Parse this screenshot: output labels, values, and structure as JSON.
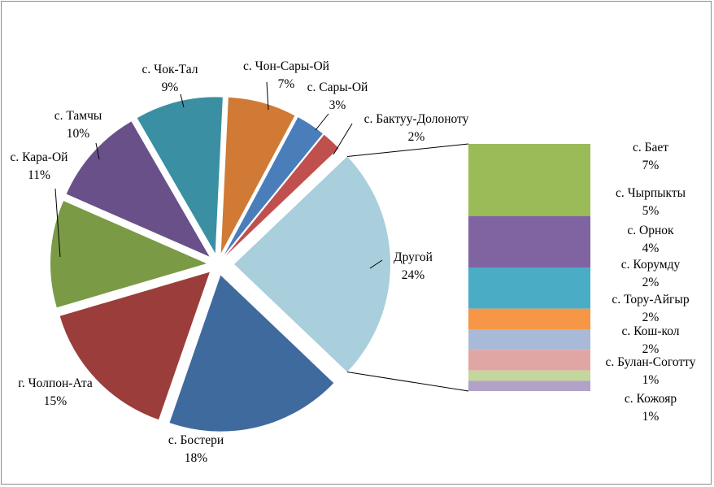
{
  "chart_data": {
    "type": "bar-of-pie",
    "pie": {
      "slices": [
        {
          "label": "с. Чон-Сары-Ой",
          "value": 7,
          "percent_label": "7%",
          "color": "#D07A35"
        },
        {
          "label": "с. Сары-Ой",
          "value": 3,
          "percent_label": "3%",
          "color": "#4A7EBB"
        },
        {
          "label": "с. Бактуу-Долоноту",
          "value": 2,
          "percent_label": "2%",
          "color": "#C0504D"
        },
        {
          "label": "Другой",
          "value": 24,
          "percent_label": "24%",
          "color": "#A9CEDC"
        },
        {
          "label": "с. Бостери",
          "value": 18,
          "percent_label": "18%",
          "color": "#3F6A9E"
        },
        {
          "label": "г. Чолпон-Ата",
          "value": 15,
          "percent_label": "15%",
          "color": "#9B3D3A"
        },
        {
          "label": "с. Кара-Ой",
          "value": 11,
          "percent_label": "11%",
          "color": "#7A9A46"
        },
        {
          "label": "с. Тамчы",
          "value": 10,
          "percent_label": "10%",
          "color": "#6A5089"
        },
        {
          "label": "с. Чок-Тал",
          "value": 9,
          "percent_label": "9%",
          "color": "#3A8FA3"
        }
      ]
    },
    "bar": {
      "segments": [
        {
          "label": "с. Бает",
          "value": 7,
          "percent_label": "7%",
          "color": "#9BBB59"
        },
        {
          "label": "с. Чырпыкты",
          "value": 5,
          "percent_label": "5%",
          "color": "#8064A2"
        },
        {
          "label": "с. Орнок",
          "value": 4,
          "percent_label": "4%",
          "color": "#4BACC6"
        },
        {
          "label": "с. Корумду",
          "value": 2,
          "percent_label": "2%",
          "color": "#F79646"
        },
        {
          "label": "с. Тору-Айгыр",
          "value": 2,
          "percent_label": "2%",
          "color": "#A9BAD8"
        },
        {
          "label": "с. Кош-кол",
          "value": 2,
          "percent_label": "2%",
          "color": "#E0A6A4"
        },
        {
          "label": "с. Булан-Соготту",
          "value": 1,
          "percent_label": "1%",
          "color": "#C3D69B"
        },
        {
          "label": "с. Кожояр",
          "value": 1,
          "percent_label": "1%",
          "color": "#B2A2C7"
        }
      ]
    }
  }
}
